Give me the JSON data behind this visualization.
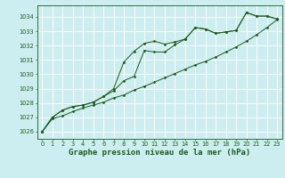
{
  "bg_color": "#cceef0",
  "grid_color": "#ffffff",
  "line_color": "#1a5c1a",
  "marker_color": "#1a5c1a",
  "xlabel": "Graphe pression niveau de la mer (hPa)",
  "xlabel_fontsize": 6.5,
  "ylim": [
    1025.5,
    1034.8
  ],
  "xlim": [
    -0.5,
    23.5
  ],
  "yticks": [
    1026,
    1027,
    1028,
    1029,
    1030,
    1031,
    1032,
    1033,
    1034
  ],
  "xticks": [
    0,
    1,
    2,
    3,
    4,
    5,
    6,
    7,
    8,
    9,
    10,
    11,
    12,
    13,
    14,
    15,
    16,
    17,
    18,
    19,
    20,
    21,
    22,
    23
  ],
  "series1": [
    1026.0,
    1026.9,
    1027.1,
    1027.4,
    1027.65,
    1027.85,
    1028.05,
    1028.35,
    1028.55,
    1028.9,
    1029.15,
    1029.45,
    1029.75,
    1030.05,
    1030.35,
    1030.65,
    1030.9,
    1031.2,
    1031.55,
    1031.9,
    1032.3,
    1032.75,
    1033.25,
    1033.8
  ],
  "series2": [
    1026.0,
    1027.0,
    1027.5,
    1027.75,
    1027.85,
    1028.05,
    1028.45,
    1029.0,
    1030.85,
    1031.6,
    1032.15,
    1032.3,
    1032.1,
    1032.25,
    1032.45,
    1033.25,
    1033.15,
    1032.85,
    1032.95,
    1033.05,
    1034.3,
    1034.05,
    1034.05,
    1033.85
  ],
  "series3": [
    1026.0,
    1027.0,
    1027.5,
    1027.75,
    1027.85,
    1028.05,
    1028.45,
    1028.85,
    1029.55,
    1029.85,
    1031.65,
    1031.55,
    1031.55,
    1032.05,
    1032.45,
    1033.25,
    1033.15,
    1032.85,
    1032.95,
    1033.05,
    1034.3,
    1034.05,
    1034.05,
    1033.85
  ]
}
